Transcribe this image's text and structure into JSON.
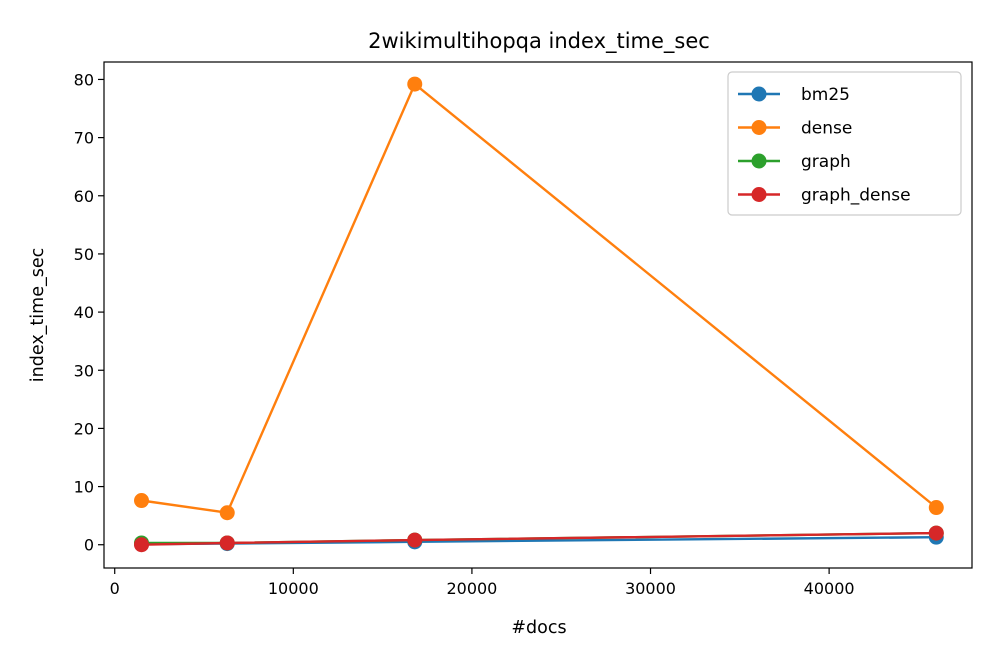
{
  "chart_data": {
    "type": "line",
    "title": "2wikimultihopqa index_time_sec",
    "xlabel": "#docs",
    "ylabel": "index_time_sec",
    "xlim": [
      -600,
      48000
    ],
    "ylim": [
      -4,
      83
    ],
    "xticks": [
      0,
      10000,
      20000,
      30000,
      40000
    ],
    "xtick_labels": [
      "0",
      "10000",
      "20000",
      "30000",
      "40000"
    ],
    "yticks": [
      0,
      10,
      20,
      30,
      40,
      50,
      60,
      70,
      80
    ],
    "ytick_labels": [
      "0",
      "10",
      "20",
      "30",
      "40",
      "50",
      "60",
      "70",
      "80"
    ],
    "grid": false,
    "legend_position": "top-right",
    "x": [
      1500,
      6300,
      16800,
      46000
    ],
    "series": [
      {
        "name": "bm25",
        "color": "#1f77b4",
        "values": [
          0.1,
          0.2,
          0.5,
          1.3
        ]
      },
      {
        "name": "dense",
        "color": "#ff7f0e",
        "values": [
          7.6,
          5.5,
          79.2,
          6.4
        ]
      },
      {
        "name": "graph",
        "color": "#2ca02c",
        "values": [
          0.3,
          0.3,
          0.8,
          2.0
        ]
      },
      {
        "name": "graph_dense",
        "color": "#d62728",
        "values": [
          0.0,
          0.3,
          0.8,
          2.0
        ]
      }
    ]
  }
}
